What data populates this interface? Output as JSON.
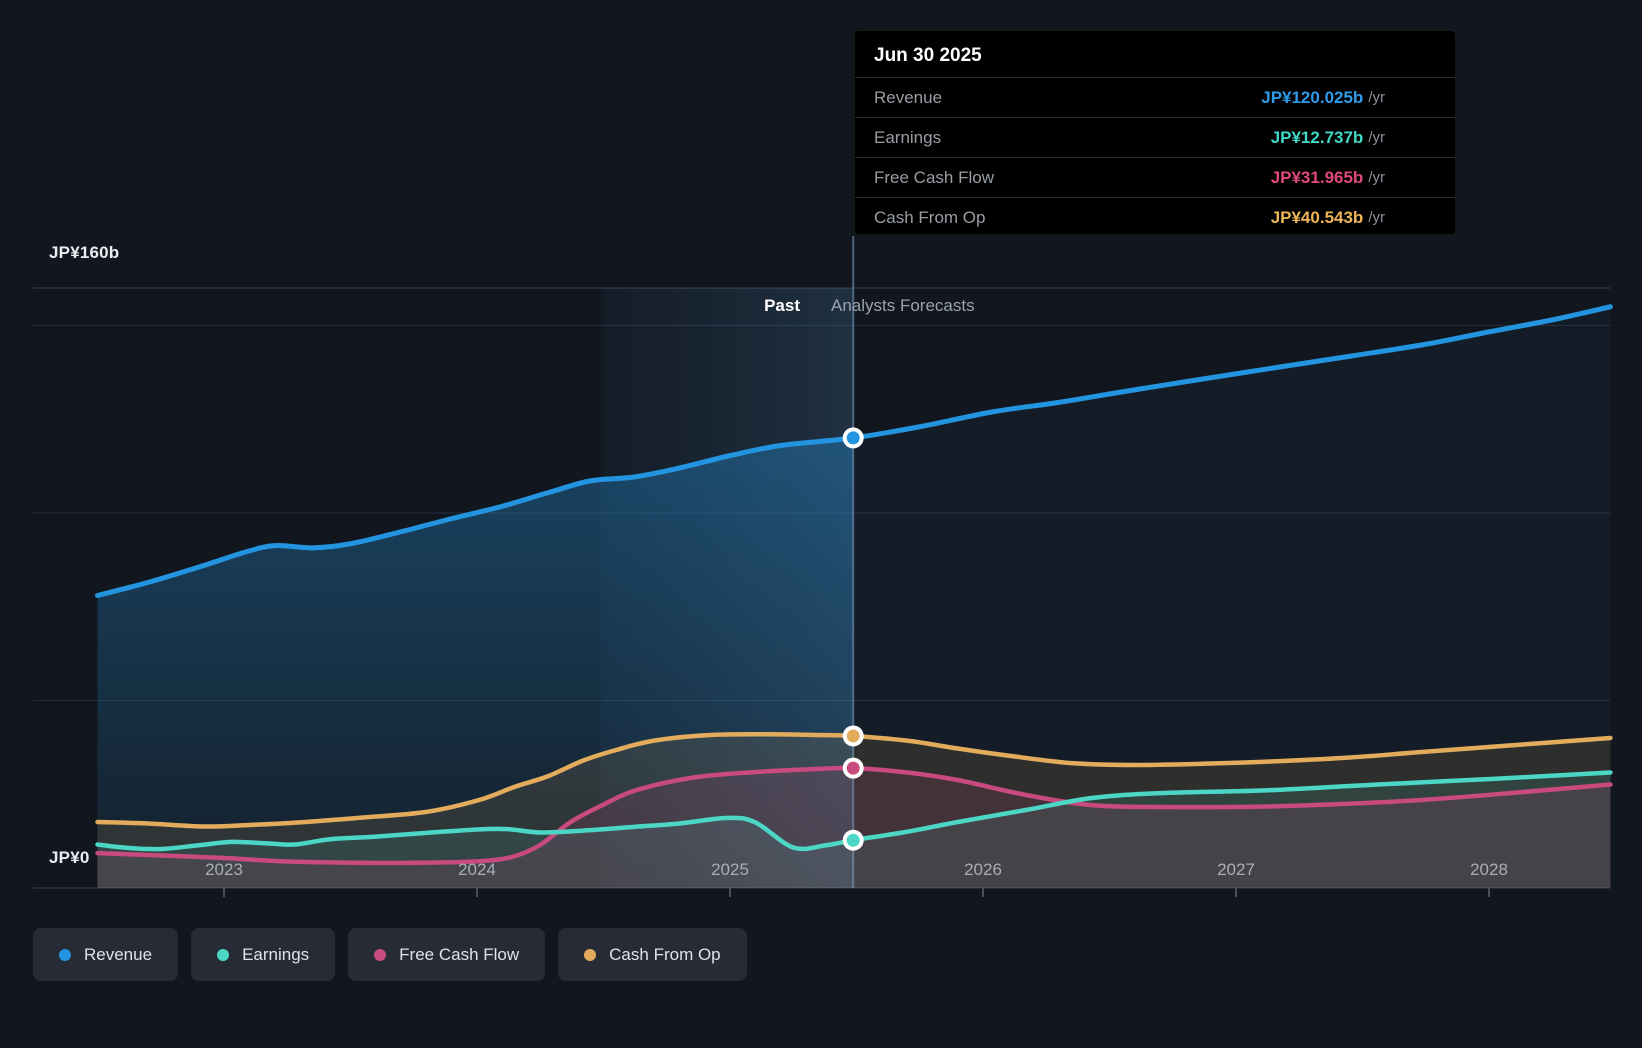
{
  "tooltip": {
    "title": "Jun 30 2025",
    "rows": [
      {
        "id": "revenue",
        "label": "Revenue",
        "value": "JP¥120.025b",
        "suffix": "/yr",
        "color": "#2E9BE8"
      },
      {
        "id": "earnings",
        "label": "Earnings",
        "value": "JP¥12.737b",
        "suffix": "/yr",
        "color": "#3FD8C7"
      },
      {
        "id": "fcf",
        "label": "Free Cash Flow",
        "value": "JP¥31.965b",
        "suffix": "/yr",
        "color": "#E0487F"
      },
      {
        "id": "cfo",
        "label": "Cash From Op",
        "value": "JP¥40.543b",
        "suffix": "/yr",
        "color": "#EDB558"
      }
    ]
  },
  "header": {
    "past_label": "Past",
    "forecasts_label": "Analysts Forecasts"
  },
  "y_axis": {
    "top_label": "JP¥160b",
    "zero_label": "JP¥0"
  },
  "x_axis": {
    "years": [
      "2023",
      "2024",
      "2025",
      "2026",
      "2027",
      "2028"
    ]
  },
  "legend": {
    "items": [
      {
        "id": "revenue",
        "label": "Revenue",
        "color": "#2394DF"
      },
      {
        "id": "earnings",
        "label": "Earnings",
        "color": "#4BD6C5"
      },
      {
        "id": "fcf",
        "label": "Free Cash Flow",
        "color": "#C94A7E"
      },
      {
        "id": "cfo",
        "label": "Cash From Op",
        "color": "#E3AC5D"
      }
    ]
  },
  "chart_data": {
    "type": "area",
    "x_unit": "decimal_year",
    "x_range": [
      2022.5,
      2028.48
    ],
    "y_range": [
      0,
      160
    ],
    "ylabel": "JP¥ billions",
    "today": 2025.487,
    "highlight_band": [
      2024.49,
      2025.487
    ],
    "gridline_values": [
      0,
      50,
      100,
      150,
      160
    ],
    "today_values": {
      "revenue": 120.025,
      "earnings": 12.737,
      "fcf": 31.965,
      "cfo": 40.543
    },
    "series": [
      {
        "id": "revenue",
        "name": "Revenue",
        "color": "#2394DF",
        "past": [
          [
            2022.5,
            78.0
          ],
          [
            2022.7,
            81.5
          ],
          [
            2022.92,
            86.0
          ],
          [
            2023.08,
            89.5
          ],
          [
            2023.2,
            91.3
          ],
          [
            2023.35,
            90.7
          ],
          [
            2023.5,
            91.8
          ],
          [
            2023.7,
            95.0
          ],
          [
            2023.9,
            98.5
          ],
          [
            2024.1,
            101.8
          ],
          [
            2024.3,
            105.8
          ],
          [
            2024.45,
            108.6
          ],
          [
            2024.62,
            109.6
          ],
          [
            2024.8,
            112.0
          ],
          [
            2025.0,
            115.3
          ],
          [
            2025.2,
            118.0
          ],
          [
            2025.487,
            120.025
          ]
        ],
        "forecast": [
          [
            2025.487,
            120.025
          ],
          [
            2025.75,
            123.0
          ],
          [
            2026.04,
            127.0
          ],
          [
            2026.3,
            129.5
          ],
          [
            2026.55,
            132.3
          ],
          [
            2026.8,
            135.0
          ],
          [
            2027.16,
            138.8
          ],
          [
            2027.45,
            141.8
          ],
          [
            2027.75,
            145.0
          ],
          [
            2028.0,
            148.3
          ],
          [
            2028.25,
            151.5
          ],
          [
            2028.48,
            155.0
          ]
        ]
      },
      {
        "id": "cfo",
        "name": "Cash From Op",
        "color": "#E3AC5D",
        "past": [
          [
            2022.5,
            17.6
          ],
          [
            2022.7,
            17.2
          ],
          [
            2022.92,
            16.4
          ],
          [
            2023.1,
            16.8
          ],
          [
            2023.3,
            17.5
          ],
          [
            2023.55,
            18.8
          ],
          [
            2023.8,
            20.3
          ],
          [
            2024.01,
            23.5
          ],
          [
            2024.15,
            27.0
          ],
          [
            2024.28,
            29.8
          ],
          [
            2024.42,
            34.0
          ],
          [
            2024.55,
            36.8
          ],
          [
            2024.7,
            39.3
          ],
          [
            2024.92,
            40.8
          ],
          [
            2025.15,
            41.0
          ],
          [
            2025.35,
            40.8
          ],
          [
            2025.487,
            40.543
          ]
        ],
        "forecast": [
          [
            2025.487,
            40.543
          ],
          [
            2025.7,
            39.3
          ],
          [
            2025.9,
            37.2
          ],
          [
            2026.1,
            35.3
          ],
          [
            2026.35,
            33.3
          ],
          [
            2026.6,
            32.8
          ],
          [
            2026.9,
            33.2
          ],
          [
            2027.16,
            33.8
          ],
          [
            2027.45,
            34.8
          ],
          [
            2027.74,
            36.3
          ],
          [
            2028.1,
            38.1
          ],
          [
            2028.48,
            40.0
          ]
        ]
      },
      {
        "id": "fcf",
        "name": "Free Cash Flow",
        "color": "#C94A7E",
        "past": [
          [
            2022.5,
            9.3
          ],
          [
            2022.7,
            8.8
          ],
          [
            2023.0,
            8.0
          ],
          [
            2023.2,
            7.2
          ],
          [
            2023.35,
            6.9
          ],
          [
            2023.6,
            6.7
          ],
          [
            2023.85,
            6.8
          ],
          [
            2024.02,
            7.2
          ],
          [
            2024.14,
            8.3
          ],
          [
            2024.25,
            11.5
          ],
          [
            2024.37,
            17.6
          ],
          [
            2024.49,
            21.9
          ],
          [
            2024.63,
            26.1
          ],
          [
            2024.87,
            29.6
          ],
          [
            2025.12,
            31.0
          ],
          [
            2025.3,
            31.6
          ],
          [
            2025.487,
            31.965
          ]
        ],
        "forecast": [
          [
            2025.487,
            31.965
          ],
          [
            2025.7,
            30.8
          ],
          [
            2025.9,
            28.8
          ],
          [
            2026.17,
            24.8
          ],
          [
            2026.43,
            22.1
          ],
          [
            2026.7,
            21.6
          ],
          [
            2027.1,
            21.7
          ],
          [
            2027.45,
            22.5
          ],
          [
            2027.74,
            23.5
          ],
          [
            2028.1,
            25.4
          ],
          [
            2028.48,
            27.6
          ]
        ]
      },
      {
        "id": "earnings",
        "name": "Earnings",
        "color": "#4BD6C5",
        "past": [
          [
            2022.5,
            11.6
          ],
          [
            2022.62,
            10.7
          ],
          [
            2022.75,
            10.4
          ],
          [
            2022.9,
            11.4
          ],
          [
            2023.03,
            12.3
          ],
          [
            2023.17,
            11.9
          ],
          [
            2023.28,
            11.6
          ],
          [
            2023.42,
            13.0
          ],
          [
            2023.6,
            13.7
          ],
          [
            2023.8,
            14.7
          ],
          [
            2024.0,
            15.6
          ],
          [
            2024.12,
            15.7
          ],
          [
            2024.25,
            14.8
          ],
          [
            2024.42,
            15.3
          ],
          [
            2024.62,
            16.3
          ],
          [
            2024.8,
            17.2
          ],
          [
            2024.99,
            18.7
          ],
          [
            2025.1,
            17.5
          ],
          [
            2025.25,
            10.8
          ],
          [
            2025.38,
            11.4
          ],
          [
            2025.487,
            12.737
          ]
        ],
        "forecast": [
          [
            2025.487,
            12.737
          ],
          [
            2025.7,
            15.0
          ],
          [
            2025.9,
            17.6
          ],
          [
            2026.17,
            20.8
          ],
          [
            2026.43,
            24.0
          ],
          [
            2026.7,
            25.3
          ],
          [
            2027.1,
            26.0
          ],
          [
            2027.45,
            27.2
          ],
          [
            2027.74,
            28.2
          ],
          [
            2028.1,
            29.4
          ],
          [
            2028.48,
            30.8
          ]
        ]
      }
    ]
  }
}
